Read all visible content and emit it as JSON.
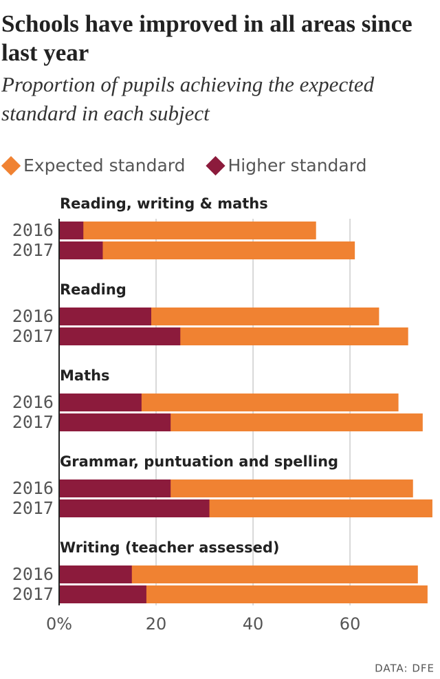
{
  "chart_data": {
    "type": "bar",
    "title": "Schools have improved in all areas since last year",
    "subtitle": "Proportion of pupils achieving the expected standard in each subject",
    "groups": [
      "Reading, writing & maths",
      "Reading",
      "Maths",
      "Grammar, puntuation and spelling",
      "Writing (teacher assessed)"
    ],
    "categories": [
      "2016",
      "2017",
      "2016",
      "2017",
      "2016",
      "2017",
      "2016",
      "2017",
      "2016",
      "2017"
    ],
    "series": [
      {
        "name": "Expected standard",
        "color": "#f08232",
        "values": [
          53,
          61,
          66,
          72,
          70,
          75,
          73,
          77,
          74,
          76
        ]
      },
      {
        "name": "Higher standard",
        "color": "#8c1b3c",
        "values": [
          5,
          9,
          19,
          25,
          17,
          23,
          23,
          31,
          15,
          18
        ]
      }
    ],
    "xlim": [
      0,
      78
    ],
    "xticks": [
      {
        "value": 0,
        "label": "0%"
      },
      20,
      40,
      60
    ],
    "grid": true,
    "source": "DATA: DFE"
  }
}
